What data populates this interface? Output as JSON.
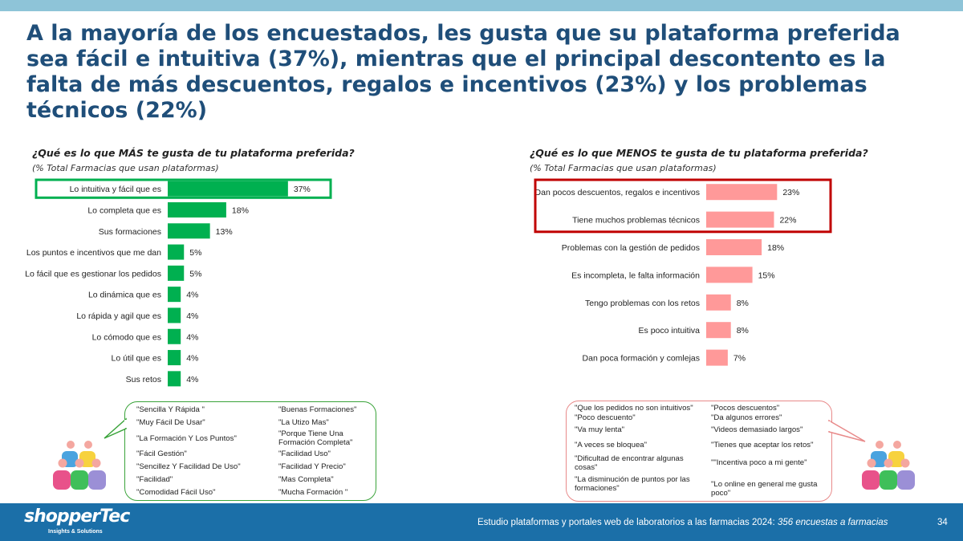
{
  "headline": "A la mayoría de los encuestados, les gusta que su plataforma preferida sea fácil e intuitiva (37%), mientras que el principal descontento es la falta de más descuentos, regalos e incentivos (23%) y los problemas técnicos (22%)",
  "colors": {
    "green": "#00b050",
    "pink": "#ff9999",
    "green_box": "#00b050",
    "red_box": "#c00000",
    "footer": "#1b6fa8",
    "title": "#1f4e79"
  },
  "left": {
    "question": "¿Qué es lo que MÁS te gusta de tu plataforma preferida?",
    "subtitle": "(% Total Farmacias que usan plataformas)",
    "quotes": [
      "\"Sencilla Y Rápida \"",
      "\"Buenas Formaciones\"",
      "\"Muy Fácil De Usar\"",
      "\"La Utizo Mas\"",
      "\"La Formación Y Los Puntos\"",
      "\"Porque Tiene Una Formación Completa\"",
      "\"Fácil Gestión\"",
      "\"Facilidad Uso\"",
      "\"Sencillez Y Facilidad De Uso\"",
      "\"Facilidad Y Precio\"",
      "\"Facilidad\"",
      "\"Mas Completa\"",
      "\"Comodidad Fácil Uso\"",
      "\"Mucha Formación \""
    ]
  },
  "right": {
    "question": "¿Qué es lo que MENOS te gusta de tu plataforma preferida?",
    "subtitle": "(% Total Farmacias que usan plataformas)",
    "quotes": [
      "\"Que los pedidos no son intuitivos\"",
      "\"Pocos descuentos\"",
      "\"Poco descuento\"",
      "\"Da algunos errores\"",
      "\"Va muy lenta\"",
      "\"Videos demasiado largos\"",
      "\"A veces se bloquea\"",
      "\"Tienes que aceptar los retos\"",
      "\"Dificultad de encontrar algunas cosas\"",
      "\"\"Incentiva poco a mi gente\"",
      "\"La disminución de puntos por las formaciones\"",
      "\"Lo online en general me gusta poco\""
    ]
  },
  "chart_data": [
    {
      "type": "bar",
      "orientation": "horizontal",
      "title": "¿Qué es lo que MÁS te gusta de tu plataforma preferida?",
      "subtitle": "(% Total Farmacias que usan plataformas)",
      "categories": [
        "Lo intuitiva y fácil que es",
        "Lo completa que es",
        "Sus formaciones",
        "Los puntos e incentivos que me dan",
        "Lo fácil que es gestionar los pedidos",
        "Lo dinámica que es",
        "Lo rápida y agil que es",
        "Lo cómodo que es",
        "Lo útil que es",
        "Sus retos"
      ],
      "values": [
        37,
        18,
        13,
        5,
        5,
        4,
        4,
        4,
        4,
        4
      ],
      "value_labels": [
        "37%",
        "18%",
        "13%",
        "5%",
        "5%",
        "4%",
        "4%",
        "4%",
        "4%",
        "4%"
      ],
      "highlighted": [
        0
      ],
      "color": "#00b050"
    },
    {
      "type": "bar",
      "orientation": "horizontal",
      "title": "¿Qué es lo que MENOS te gusta de tu plataforma preferida?",
      "subtitle": "(% Total Farmacias que usan plataformas)",
      "categories": [
        "Dan pocos descuentos, regalos e incentivos",
        "Tiene muchos problemas técnicos",
        "Problemas con la gestión de pedidos",
        "Es incompleta, le falta información",
        "Tengo problemas con los retos",
        "Es poco intuitiva",
        "Dan poca formación y comlejas"
      ],
      "values": [
        23,
        22,
        18,
        15,
        8,
        8,
        7
      ],
      "value_labels": [
        "23%",
        "22%",
        "18%",
        "15%",
        "8%",
        "8%",
        "7%"
      ],
      "highlighted": [
        0,
        1
      ],
      "color": "#ff9999"
    }
  ],
  "footer": {
    "logo": "shopperTec",
    "logo_sub": "Insights & Solutions",
    "study": "Estudio plataformas y portales web de laboratorios a las farmacias 2024: ",
    "study_italic": "356 encuestas a farmacias",
    "page": "34"
  }
}
